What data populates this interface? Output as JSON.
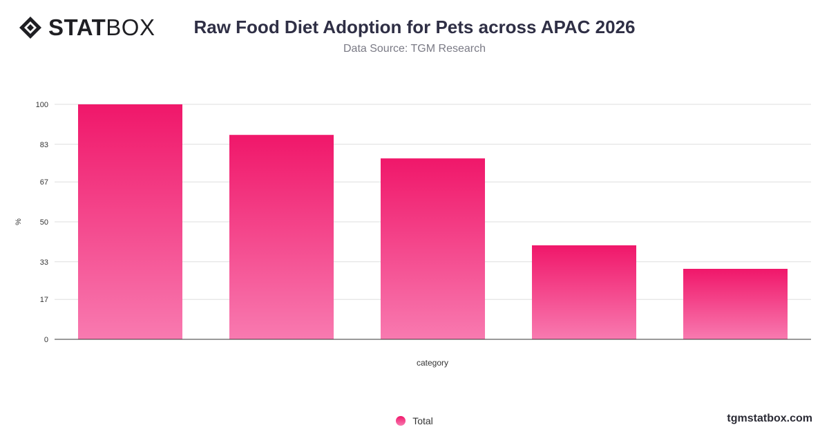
{
  "brand": {
    "logo_strong": "STAT",
    "logo_light": "BOX",
    "footer": "tgmstatbox.com"
  },
  "colors": {
    "bar_top": "#f0176a",
    "bar_bottom": "#f87ab0",
    "grid": "#dddddd",
    "axis": "#333333"
  },
  "chart_data": {
    "type": "bar",
    "title": "Raw Food Diet Adoption for Pets across APAC 2026",
    "subtitle": "Data Source: TGM Research",
    "xlabel": "category",
    "ylabel": "%",
    "ylim": [
      0,
      100
    ],
    "yticks": [
      0,
      17,
      33,
      50,
      67,
      83,
      100
    ],
    "categories": [
      "",
      "",
      "",
      "",
      ""
    ],
    "series": [
      {
        "name": "Total",
        "values": [
          100,
          87,
          77,
          40,
          30
        ]
      }
    ],
    "legend": "bottom-center",
    "grid": true
  }
}
